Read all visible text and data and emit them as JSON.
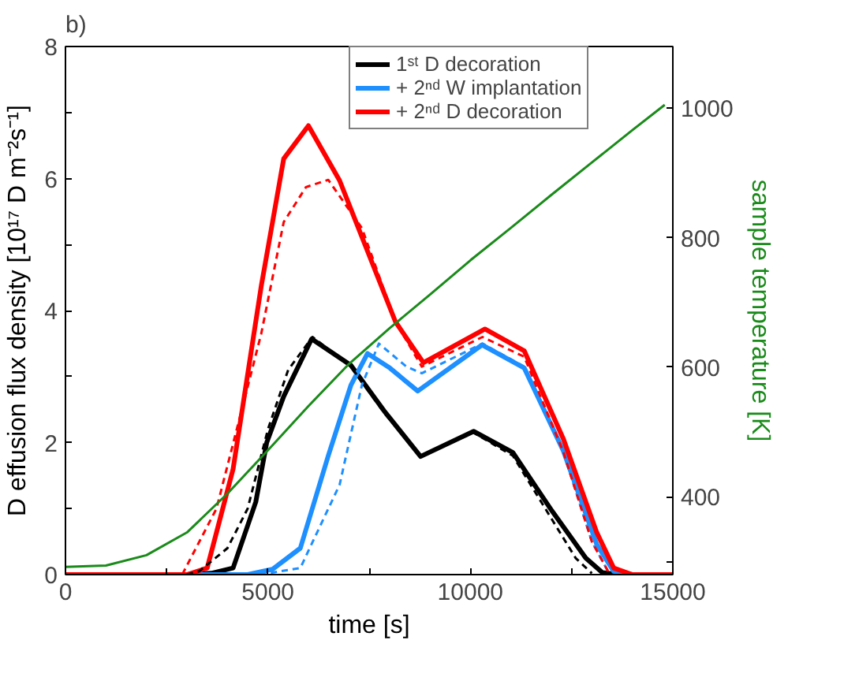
{
  "chart_data": {
    "type": "line",
    "title": "b)",
    "xlabel": "time [s]",
    "ylabel": "D effusion flux density [10¹⁷ D m⁻²s⁻¹]",
    "y2label": "sample temperature [K]",
    "xlim": [
      0,
      15000
    ],
    "xticks": [
      0,
      {
        "value": 2500,
        "label": null
      },
      5000,
      {
        "value": 7500,
        "label": null
      },
      10000,
      {
        "value": 12500,
        "label": null
      },
      15000
    ],
    "ylim": [
      0,
      8
    ],
    "yticks": [
      0,
      {
        "value": 1,
        "label": null
      },
      2,
      {
        "value": 3,
        "label": null
      },
      4,
      {
        "value": 5,
        "label": null
      },
      6,
      {
        "value": 7,
        "label": null
      },
      8
    ],
    "y2lim": [
      280,
      1095
    ],
    "y2ticks": [
      {
        "value": 300,
        "label": null
      },
      400,
      600,
      800,
      1000
    ],
    "legend": "top",
    "grid": false,
    "marker": "none",
    "series": [
      {
        "name": "1ˢᵗ D decoration",
        "color": "#000000",
        "line_style": "solid",
        "x": [
          0,
          3000,
          3600,
          4140,
          4700,
          4970,
          5390,
          6080,
          7050,
          7870,
          8770,
          10080,
          11050,
          12020,
          12850,
          13260,
          13700,
          15000
        ],
        "values": [
          0,
          0,
          0.02,
          0.1,
          1.1,
          2.0,
          2.7,
          3.57,
          3.17,
          2.48,
          1.79,
          2.17,
          1.85,
          0.96,
          0.25,
          0.03,
          0,
          0
        ]
      },
      {
        "name": "+ 2ⁿᵈ W implantation",
        "color": "#1e8fff",
        "line_style": "solid",
        "x": [
          0,
          4500,
          5110,
          5800,
          6490,
          7050,
          7460,
          8010,
          8700,
          10290,
          11330,
          12300,
          13120,
          13540,
          14000,
          15000
        ],
        "values": [
          0,
          0,
          0.08,
          0.4,
          1.8,
          2.87,
          3.35,
          3.13,
          2.78,
          3.48,
          3.13,
          1.87,
          0.46,
          0.05,
          0,
          0
        ]
      },
      {
        "name": "+ 2ⁿᵈ D decoration",
        "color": "#ff0000",
        "line_style": "solid",
        "x": [
          0,
          3000,
          3500,
          4140,
          4835,
          5390,
          6000,
          6770,
          8150,
          8840,
          10360,
          11330,
          12300,
          13120,
          13540,
          14000,
          15000
        ],
        "values": [
          0,
          0,
          0.1,
          1.6,
          4.37,
          6.3,
          6.8,
          5.97,
          3.83,
          3.21,
          3.72,
          3.39,
          2.05,
          0.64,
          0.1,
          0,
          0
        ]
      },
      {
        "color": "#000000",
        "line_style": "dashed",
        "x": [
          3000,
          3300,
          4000,
          4500,
          5000,
          5500,
          6100,
          7050,
          7870,
          8770,
          10080,
          11050,
          12000,
          12600,
          13000
        ],
        "values": [
          0,
          0.05,
          0.4,
          1.0,
          2.2,
          3.1,
          3.6,
          3.15,
          2.45,
          1.8,
          2.15,
          1.8,
          0.85,
          0.25,
          0.02
        ]
      },
      {
        "color": "#1e8fff",
        "line_style": "dashed",
        "x": [
          4800,
          5800,
          6770,
          7320,
          7740,
          8420,
          8800,
          10300,
          11330,
          12300,
          13000,
          13400
        ],
        "values": [
          0,
          0.1,
          1.36,
          2.87,
          3.5,
          3.15,
          3.05,
          3.5,
          3.15,
          1.85,
          0.5,
          0.05
        ]
      },
      {
        "color": "#ff0000",
        "line_style": "dashed",
        "x": [
          2600,
          2900,
          3730,
          4835,
          5390,
          5940,
          6490,
          7320,
          8150,
          8800,
          10300,
          11330,
          12300,
          13000,
          13400
        ],
        "values": [
          0,
          0.02,
          1.0,
          3.65,
          5.34,
          5.87,
          5.98,
          5.25,
          3.83,
          3.15,
          3.6,
          3.3,
          1.85,
          0.5,
          0.05
        ]
      },
      {
        "color": "#1a8a1a",
        "line_style": "solid",
        "axis": "y2",
        "x": [
          0,
          1000,
          2000,
          3000,
          4000,
          5000,
          6000,
          7000,
          8000,
          9000,
          10000,
          11000,
          12000,
          13000,
          14000,
          14800
        ],
        "values": [
          292,
          294,
          310,
          345,
          405,
          472,
          540,
          605,
          660,
          712,
          765,
          815,
          866,
          916,
          966,
          1005
        ]
      }
    ]
  }
}
